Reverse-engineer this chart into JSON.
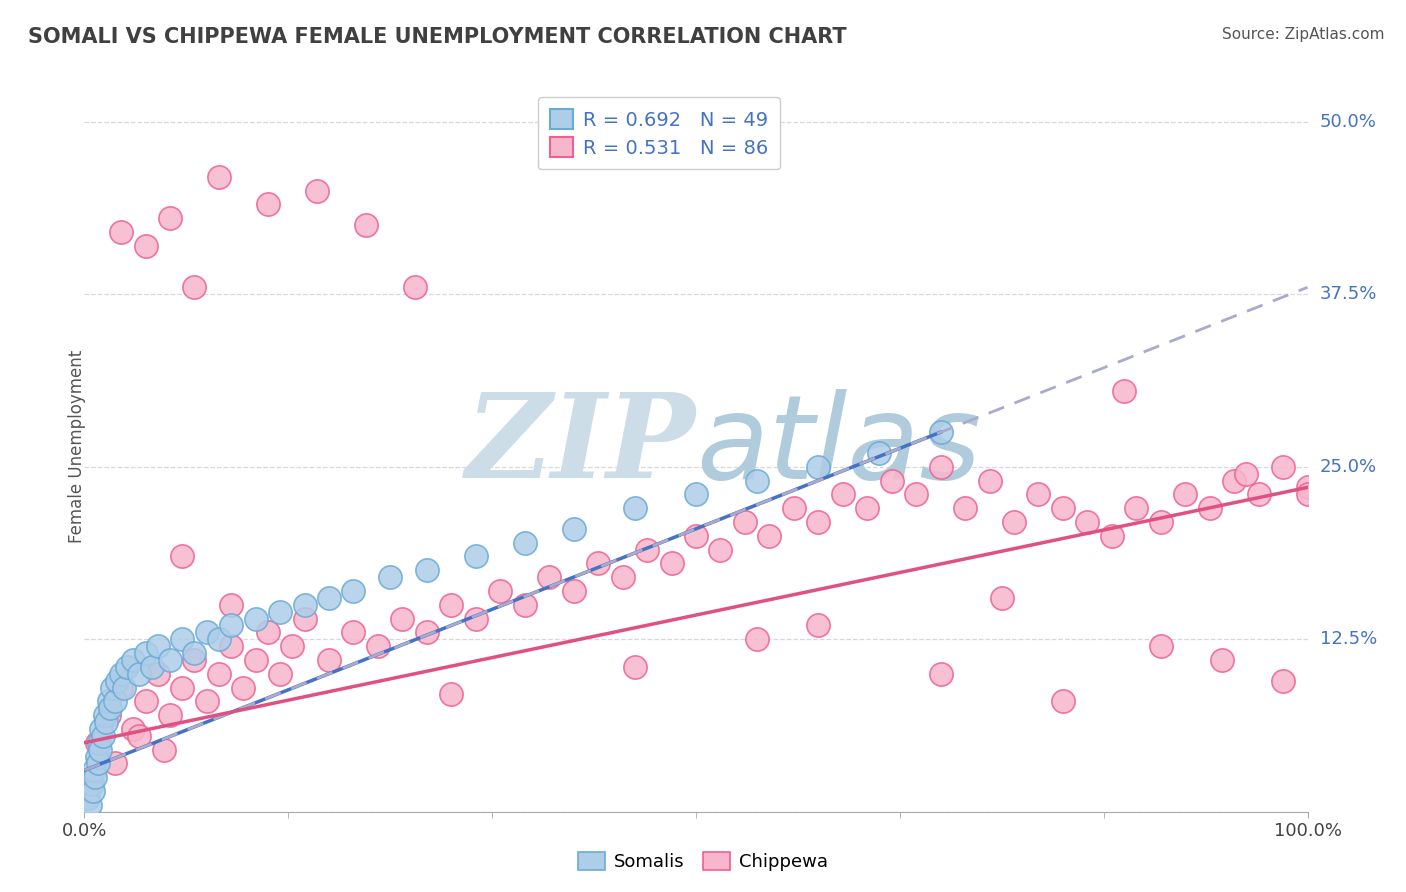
{
  "title": "SOMALI VS CHIPPEWA FEMALE UNEMPLOYMENT CORRELATION CHART",
  "source": "Source: ZipAtlas.com",
  "ylabel": "Female Unemployment",
  "xlim": [
    0,
    100
  ],
  "ylim": [
    0,
    53
  ],
  "xticklabels": [
    "0.0%",
    "100.0%"
  ],
  "yticks": [
    0,
    12.5,
    25.0,
    37.5,
    50.0
  ],
  "yticklabels": [
    "",
    "12.5%",
    "25.0%",
    "37.5%",
    "50.0%"
  ],
  "somali_R": 0.692,
  "somali_N": 49,
  "chippewa_R": 0.531,
  "chippewa_N": 86,
  "somali_fill": "#aecde8",
  "somali_edge": "#6aabd6",
  "chippewa_fill": "#f7b6cc",
  "chippewa_edge": "#f06090",
  "somali_line_color": "#4472c4",
  "chippewa_line_color": "#e05080",
  "dashed_line_color": "#aaaacc",
  "watermark_color": "#ccdde8",
  "background_color": "#ffffff",
  "grid_color": "#d8d8d8",
  "tick_color": "#4472c4",
  "title_color": "#404040",
  "somali_x": [
    0.3,
    0.5,
    0.6,
    0.7,
    0.8,
    0.9,
    1.0,
    1.1,
    1.2,
    1.3,
    1.4,
    1.5,
    1.7,
    1.8,
    2.0,
    2.1,
    2.3,
    2.5,
    2.7,
    3.0,
    3.2,
    3.5,
    4.0,
    4.5,
    5.0,
    5.5,
    6.0,
    7.0,
    8.0,
    9.0,
    10.0,
    11.0,
    12.0,
    14.0,
    16.0,
    18.0,
    20.0,
    22.0,
    25.0,
    28.0,
    32.0,
    36.0,
    40.0,
    45.0,
    50.0,
    55.0,
    60.0,
    65.0,
    70.0
  ],
  "somali_y": [
    1.0,
    0.5,
    2.0,
    1.5,
    3.0,
    2.5,
    4.0,
    3.5,
    5.0,
    4.5,
    6.0,
    5.5,
    7.0,
    6.5,
    8.0,
    7.5,
    9.0,
    8.0,
    9.5,
    10.0,
    9.0,
    10.5,
    11.0,
    10.0,
    11.5,
    10.5,
    12.0,
    11.0,
    12.5,
    11.5,
    13.0,
    12.5,
    13.5,
    14.0,
    14.5,
    15.0,
    15.5,
    16.0,
    17.0,
    17.5,
    18.5,
    19.5,
    20.5,
    22.0,
    23.0,
    24.0,
    25.0,
    26.0,
    27.5
  ],
  "chippewa_x": [
    1.0,
    2.0,
    3.0,
    4.0,
    5.0,
    6.0,
    7.0,
    8.0,
    9.0,
    10.0,
    11.0,
    12.0,
    13.0,
    14.0,
    15.0,
    16.0,
    17.0,
    18.0,
    20.0,
    22.0,
    24.0,
    26.0,
    28.0,
    30.0,
    32.0,
    34.0,
    36.0,
    38.0,
    40.0,
    42.0,
    44.0,
    46.0,
    48.0,
    50.0,
    52.0,
    54.0,
    56.0,
    58.0,
    60.0,
    62.0,
    64.0,
    66.0,
    68.0,
    70.0,
    72.0,
    74.0,
    76.0,
    78.0,
    80.0,
    82.0,
    84.0,
    86.0,
    88.0,
    90.0,
    92.0,
    94.0,
    96.0,
    98.0,
    100.0,
    3.0,
    5.0,
    7.0,
    9.0,
    11.0,
    15.0,
    19.0,
    23.0,
    27.0,
    8.0,
    12.0,
    30.0,
    45.0,
    60.0,
    75.0,
    85.0,
    95.0,
    100.0,
    55.0,
    70.0,
    80.0,
    88.0,
    93.0,
    98.0,
    2.5,
    4.5,
    6.5
  ],
  "chippewa_y": [
    5.0,
    7.0,
    9.0,
    6.0,
    8.0,
    10.0,
    7.0,
    9.0,
    11.0,
    8.0,
    10.0,
    12.0,
    9.0,
    11.0,
    13.0,
    10.0,
    12.0,
    14.0,
    11.0,
    13.0,
    12.0,
    14.0,
    13.0,
    15.0,
    14.0,
    16.0,
    15.0,
    17.0,
    16.0,
    18.0,
    17.0,
    19.0,
    18.0,
    20.0,
    19.0,
    21.0,
    20.0,
    22.0,
    21.0,
    23.0,
    22.0,
    24.0,
    23.0,
    25.0,
    22.0,
    24.0,
    21.0,
    23.0,
    22.0,
    21.0,
    20.0,
    22.0,
    21.0,
    23.0,
    22.0,
    24.0,
    23.0,
    25.0,
    23.5,
    42.0,
    41.0,
    43.0,
    38.0,
    46.0,
    44.0,
    45.0,
    42.5,
    38.0,
    18.5,
    15.0,
    8.5,
    10.5,
    13.5,
    15.5,
    30.5,
    24.5,
    23.0,
    12.5,
    10.0,
    8.0,
    12.0,
    11.0,
    9.5,
    3.5,
    5.5,
    4.5
  ]
}
